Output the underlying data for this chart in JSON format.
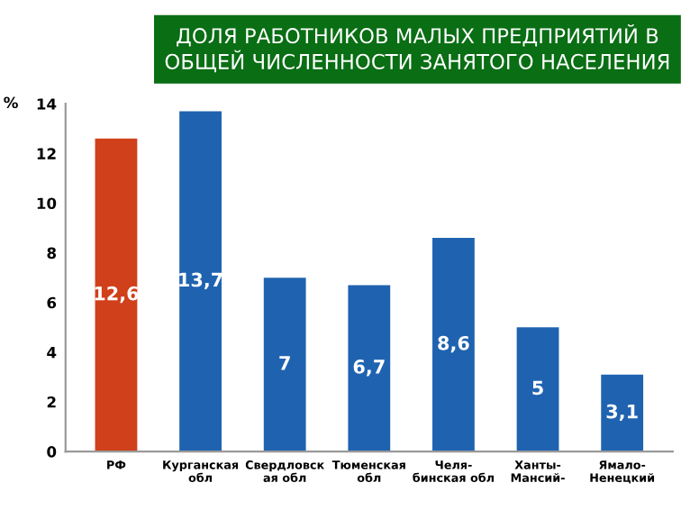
{
  "chart_data": {
    "type": "bar",
    "title": "ДОЛЯ РАБОТНИКОВ МАЛЫХ ПРЕДПРИЯТИЙ В\nОБЩЕЙ ЧИСЛЕННОСТИ ЗАНЯТОГО НАСЕЛЕНИЯ",
    "ylabel": "%",
    "categories": [
      "РФ",
      "Курганская\nобл",
      "Свердловск\nая обл",
      "Тюменская\nобл",
      "Челя-\nбинская обл",
      "Ханты-\nМансий-",
      "Ямало-\nНенецкий"
    ],
    "values": [
      12.6,
      13.7,
      7,
      6.7,
      8.6,
      5,
      3.1
    ],
    "value_labels": [
      "12,6",
      "13,7",
      "7",
      "6,7",
      "8,6",
      "5",
      "3,1"
    ],
    "colors": [
      "#d0401a",
      "#1f63b0",
      "#1f63b0",
      "#1f63b0",
      "#1f63b0",
      "#1f63b0",
      "#1f63b0"
    ],
    "ylim": [
      0,
      14
    ],
    "yticks": [
      0,
      2,
      4,
      6,
      8,
      10,
      12,
      14
    ],
    "grid": false
  }
}
